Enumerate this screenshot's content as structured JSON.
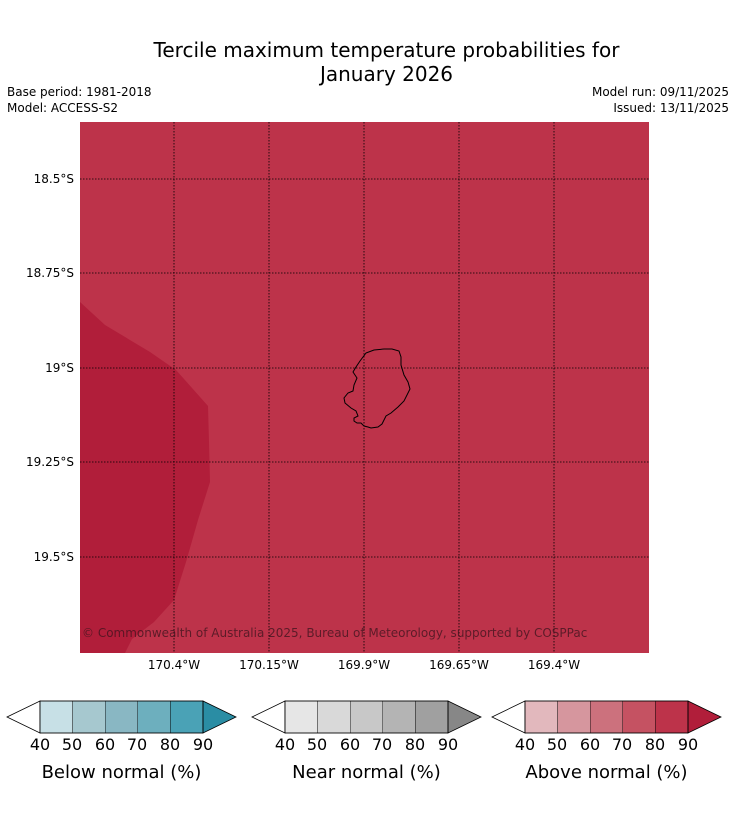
{
  "title_line1": "Tercile maximum temperature probabilities for",
  "title_line2": "January 2026",
  "base_period": "Base period: 1981-2018",
  "model": "Model: ACCESS-S2",
  "model_run": "Model run: 09/11/2025",
  "issued": "Issued: 13/11/2025",
  "map": {
    "lat_labels": [
      "18.5°S",
      "18.75°S",
      "19°S",
      "19.25°S",
      "19.5°S"
    ],
    "lon_labels": [
      "170.4°W",
      "170.15°W",
      "169.9°W",
      "169.65°W",
      "169.4°W"
    ],
    "island": "Niue",
    "fill_colors": {
      "above_80": "#bd334a",
      "above_90": "#b11e3a"
    },
    "copyright": "© Commonwealth of Australia 2025, Bureau of Meteorology, supported by COSPPac"
  },
  "colorbars": [
    {
      "label": "Below normal (%)",
      "ticks": [
        "40",
        "50",
        "60",
        "70",
        "80",
        "90"
      ],
      "colors": [
        "#c7e0e6",
        "#a6c8cf",
        "#89b7c3",
        "#6dafbe",
        "#4aa2b6",
        "#2a8da4"
      ]
    },
    {
      "label": "Near normal (%)",
      "ticks": [
        "40",
        "50",
        "60",
        "70",
        "80",
        "90"
      ],
      "colors": [
        "#e6e6e6",
        "#d9d9d9",
        "#c8c8c8",
        "#b4b4b4",
        "#a0a0a0",
        "#878787"
      ]
    },
    {
      "label": "Above normal (%)",
      "ticks": [
        "40",
        "50",
        "60",
        "70",
        "80",
        "90"
      ],
      "colors": [
        "#e2b8bd",
        "#d6969e",
        "#cc717d",
        "#c55262",
        "#bd334a",
        "#b11e3a"
      ]
    }
  ]
}
